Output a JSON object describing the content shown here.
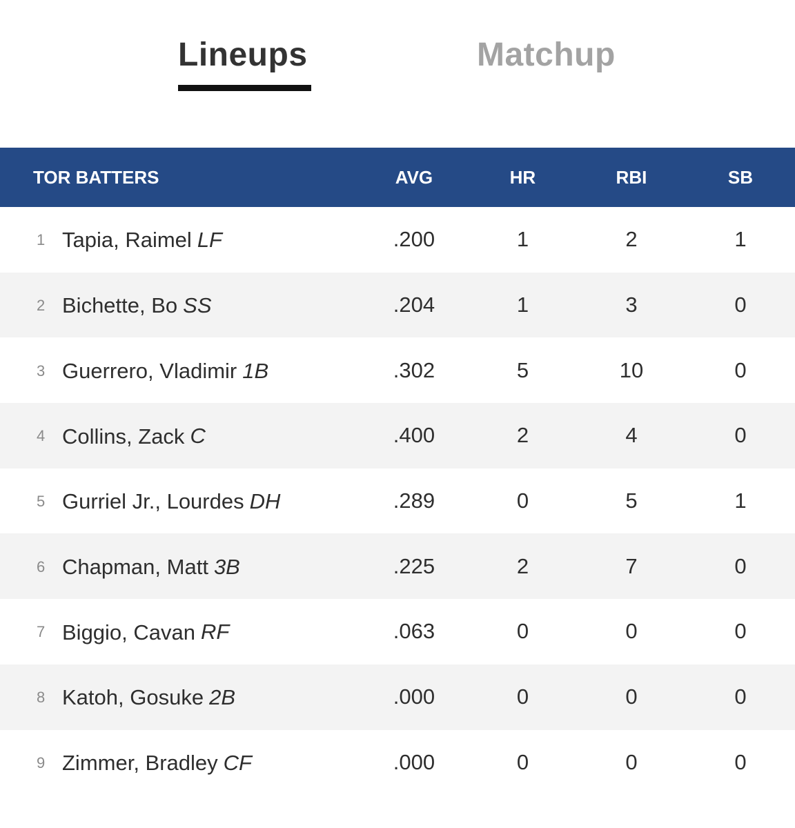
{
  "tabs": {
    "lineups_label": "Lineups",
    "matchup_label": "Matchup",
    "active": "Lineups"
  },
  "table": {
    "headers": {
      "name": "TOR BATTERS",
      "avg": "AVG",
      "hr": "HR",
      "rbi": "RBI",
      "sb": "SB"
    },
    "rows": [
      {
        "order": "1",
        "name": "Tapia, Raimel",
        "pos": "LF",
        "avg": ".200",
        "hr": "1",
        "rbi": "2",
        "sb": "1"
      },
      {
        "order": "2",
        "name": "Bichette, Bo",
        "pos": "SS",
        "avg": ".204",
        "hr": "1",
        "rbi": "3",
        "sb": "0"
      },
      {
        "order": "3",
        "name": "Guerrero, Vladimir",
        "pos": "1B",
        "avg": ".302",
        "hr": "5",
        "rbi": "10",
        "sb": "0"
      },
      {
        "order": "4",
        "name": "Collins, Zack",
        "pos": "C",
        "avg": ".400",
        "hr": "2",
        "rbi": "4",
        "sb": "0"
      },
      {
        "order": "5",
        "name": "Gurriel Jr., Lourdes",
        "pos": "DH",
        "avg": ".289",
        "hr": "0",
        "rbi": "5",
        "sb": "1"
      },
      {
        "order": "6",
        "name": "Chapman, Matt",
        "pos": "3B",
        "avg": ".225",
        "hr": "2",
        "rbi": "7",
        "sb": "0"
      },
      {
        "order": "7",
        "name": "Biggio, Cavan",
        "pos": "RF",
        "avg": ".063",
        "hr": "0",
        "rbi": "0",
        "sb": "0"
      },
      {
        "order": "8",
        "name": "Katoh, Gosuke",
        "pos": "2B",
        "avg": ".000",
        "hr": "0",
        "rbi": "0",
        "sb": "0"
      },
      {
        "order": "9",
        "name": "Zimmer, Bradley",
        "pos": "CF",
        "avg": ".000",
        "hr": "0",
        "rbi": "0",
        "sb": "0"
      }
    ]
  },
  "colors": {
    "header_bg": "#254a86",
    "active_tab": "#333333",
    "inactive_tab": "#a3a3a3",
    "row_alt_bg": "#f3f3f3"
  }
}
